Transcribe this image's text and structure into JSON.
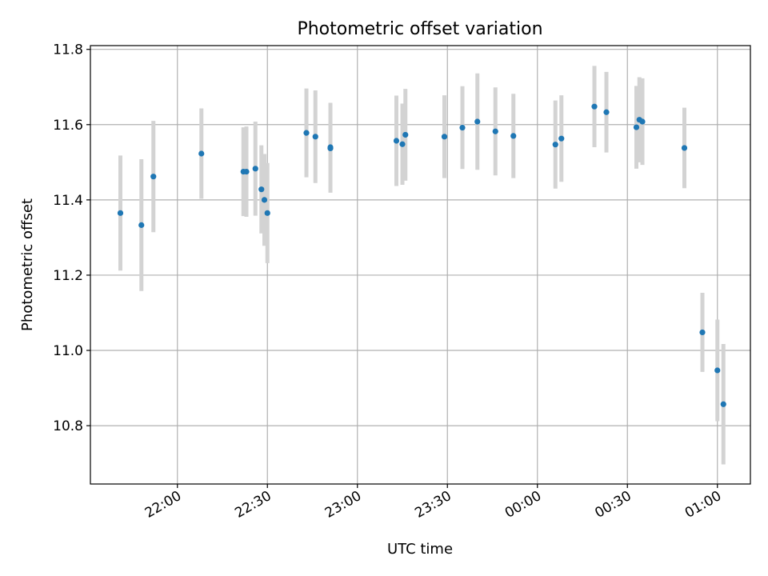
{
  "chart_data": {
    "type": "scatter",
    "title": "Photometric offset variation",
    "xlabel": "UTC time",
    "ylabel": "Photometric offset",
    "xlim": [
      "21:31:00",
      "01:11:00"
    ],
    "ylim": [
      10.645,
      11.81
    ],
    "grid": true,
    "x_tick_labels": [
      "22:00",
      "22:30",
      "23:00",
      "23:30",
      "00:00",
      "00:30",
      "01:00"
    ],
    "y_tick_labels": [
      "10.8",
      "11.0",
      "11.2",
      "11.4",
      "11.6",
      "11.8"
    ],
    "y_ticks": [
      10.8,
      11.0,
      11.2,
      11.4,
      11.6,
      11.8
    ],
    "points": [
      {
        "t": "21:41",
        "y": 11.365,
        "err": 0.153
      },
      {
        "t": "21:48",
        "y": 11.333,
        "err": 0.175
      },
      {
        "t": "21:52",
        "y": 11.462,
        "err": 0.148
      },
      {
        "t": "22:08",
        "y": 11.523,
        "err": 0.12
      },
      {
        "t": "22:22",
        "y": 11.475,
        "err": 0.118
      },
      {
        "t": "22:23",
        "y": 11.475,
        "err": 0.12
      },
      {
        "t": "22:26",
        "y": 11.483,
        "err": 0.125
      },
      {
        "t": "22:28",
        "y": 11.428,
        "err": 0.117
      },
      {
        "t": "22:29",
        "y": 11.4,
        "err": 0.122
      },
      {
        "t": "22:30",
        "y": 11.365,
        "err": 0.133
      },
      {
        "t": "22:43",
        "y": 11.578,
        "err": 0.118
      },
      {
        "t": "22:46",
        "y": 11.568,
        "err": 0.123
      },
      {
        "t": "22:51",
        "y": 11.54,
        "err": 0.118
      },
      {
        "t": "22:51",
        "y": 11.537,
        "err": 0.118
      },
      {
        "t": "23:13",
        "y": 11.557,
        "err": 0.12
      },
      {
        "t": "23:15",
        "y": 11.548,
        "err": 0.108
      },
      {
        "t": "23:16",
        "y": 11.573,
        "err": 0.122
      },
      {
        "t": "23:29",
        "y": 11.568,
        "err": 0.11
      },
      {
        "t": "23:35",
        "y": 11.592,
        "err": 0.11
      },
      {
        "t": "23:40",
        "y": 11.608,
        "err": 0.128
      },
      {
        "t": "23:46",
        "y": 11.582,
        "err": 0.117
      },
      {
        "t": "23:52",
        "y": 11.57,
        "err": 0.112
      },
      {
        "t": "00:06",
        "y": 11.547,
        "err": 0.117
      },
      {
        "t": "00:08",
        "y": 11.563,
        "err": 0.115
      },
      {
        "t": "00:19",
        "y": 11.648,
        "err": 0.108
      },
      {
        "t": "00:23",
        "y": 11.633,
        "err": 0.107
      },
      {
        "t": "00:33",
        "y": 11.593,
        "err": 0.11
      },
      {
        "t": "00:34",
        "y": 11.613,
        "err": 0.113
      },
      {
        "t": "00:35",
        "y": 11.608,
        "err": 0.115
      },
      {
        "t": "00:49",
        "y": 11.538,
        "err": 0.107
      },
      {
        "t": "00:55",
        "y": 11.048,
        "err": 0.105
      },
      {
        "t": "01:00",
        "y": 10.947,
        "err": 0.135
      },
      {
        "t": "01:02",
        "y": 10.857,
        "err": 0.16
      }
    ]
  },
  "colors": {
    "marker": "#1f77b4",
    "errorbar": "#d3d3d3",
    "grid": "#b0b0b0",
    "axes": "#000000",
    "background": "#ffffff"
  }
}
